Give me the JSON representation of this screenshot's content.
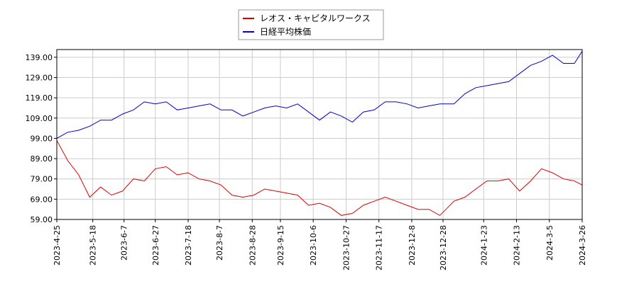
{
  "chart_data": {
    "type": "line",
    "x": [
      "2023-04-25",
      "2023-05-02",
      "2023-05-09",
      "2023-05-16",
      "2023-05-23",
      "2023-05-30",
      "2023-06-06",
      "2023-06-13",
      "2023-06-20",
      "2023-06-27",
      "2023-07-04",
      "2023-07-11",
      "2023-07-18",
      "2023-07-25",
      "2023-08-01",
      "2023-08-08",
      "2023-08-15",
      "2023-08-22",
      "2023-08-29",
      "2023-09-05",
      "2023-09-12",
      "2023-09-19",
      "2023-09-26",
      "2023-10-03",
      "2023-10-10",
      "2023-10-17",
      "2023-10-24",
      "2023-10-31",
      "2023-11-07",
      "2023-11-14",
      "2023-11-21",
      "2023-11-28",
      "2023-12-05",
      "2023-12-12",
      "2023-12-19",
      "2023-12-26",
      "2024-01-04",
      "2024-01-11",
      "2024-01-18",
      "2024-01-25",
      "2024-02-01",
      "2024-02-08",
      "2024-02-15",
      "2024-02-22",
      "2024-02-29",
      "2024-03-07",
      "2024-03-14",
      "2024-03-21",
      "2024-03-26"
    ],
    "series": [
      {
        "name": "レオス・キャピタルワークス",
        "color": "#dd0000",
        "values": [
          98,
          88,
          81,
          70,
          75,
          71,
          73,
          79,
          78,
          84,
          85,
          81,
          82,
          79,
          78,
          76,
          71,
          70,
          71,
          74,
          73,
          72,
          71,
          66,
          67,
          65,
          61,
          62,
          66,
          68,
          70,
          68,
          66,
          64,
          64,
          61,
          68,
          70,
          74,
          78,
          78,
          79,
          73,
          78,
          84,
          82,
          79,
          78,
          76
        ]
      },
      {
        "name": "日経平均株価",
        "color": "#0000cc",
        "values": [
          99,
          102,
          103,
          105,
          108,
          108,
          111,
          113,
          117,
          116,
          117,
          113,
          114,
          115,
          116,
          113,
          113,
          110,
          112,
          114,
          115,
          114,
          116,
          112,
          108,
          112,
          110,
          107,
          112,
          113,
          117,
          117,
          116,
          114,
          115,
          116,
          116,
          121,
          124,
          125,
          126,
          127,
          131,
          135,
          137,
          140,
          136,
          136,
          142
        ]
      }
    ],
    "xlim": [
      "2023-04-25",
      "2024-03-26"
    ],
    "xticks": [
      {
        "value": "2023-04-25",
        "label": "2023-4-25"
      },
      {
        "value": "2023-05-18",
        "label": "2023-5-18"
      },
      {
        "value": "2023-06-07",
        "label": "2023-6-7"
      },
      {
        "value": "2023-06-27",
        "label": "2023-6-27"
      },
      {
        "value": "2023-07-18",
        "label": "2023-7-18"
      },
      {
        "value": "2023-08-07",
        "label": "2023-8-7"
      },
      {
        "value": "2023-08-28",
        "label": "2023-8-28"
      },
      {
        "value": "2023-09-15",
        "label": "2023-9-15"
      },
      {
        "value": "2023-10-06",
        "label": "2023-10-6"
      },
      {
        "value": "2023-10-27",
        "label": "2023-10-27"
      },
      {
        "value": "2023-11-17",
        "label": "2023-11-17"
      },
      {
        "value": "2023-12-08",
        "label": "2023-12-8"
      },
      {
        "value": "2023-12-28",
        "label": "2023-12-28"
      },
      {
        "value": "2024-01-23",
        "label": "2024-1-23"
      },
      {
        "value": "2024-02-13",
        "label": "2024-2-13"
      },
      {
        "value": "2024-03-05",
        "label": "2024-3-5"
      },
      {
        "value": "2024-03-26",
        "label": "2024-3-26"
      }
    ],
    "ylim": [
      59,
      142.8
    ],
    "yticks": [
      {
        "value": 59,
        "label": "59.00"
      },
      {
        "value": 69,
        "label": "69.00"
      },
      {
        "value": 79,
        "label": "79.00"
      },
      {
        "value": 89,
        "label": "89.00"
      },
      {
        "value": 99,
        "label": "99.00"
      },
      {
        "value": 109,
        "label": "109.00"
      },
      {
        "value": 119,
        "label": "119.00"
      },
      {
        "value": 129,
        "label": "129.00"
      },
      {
        "value": 139,
        "label": "139.00"
      }
    ],
    "grid": true,
    "legend": "top"
  }
}
